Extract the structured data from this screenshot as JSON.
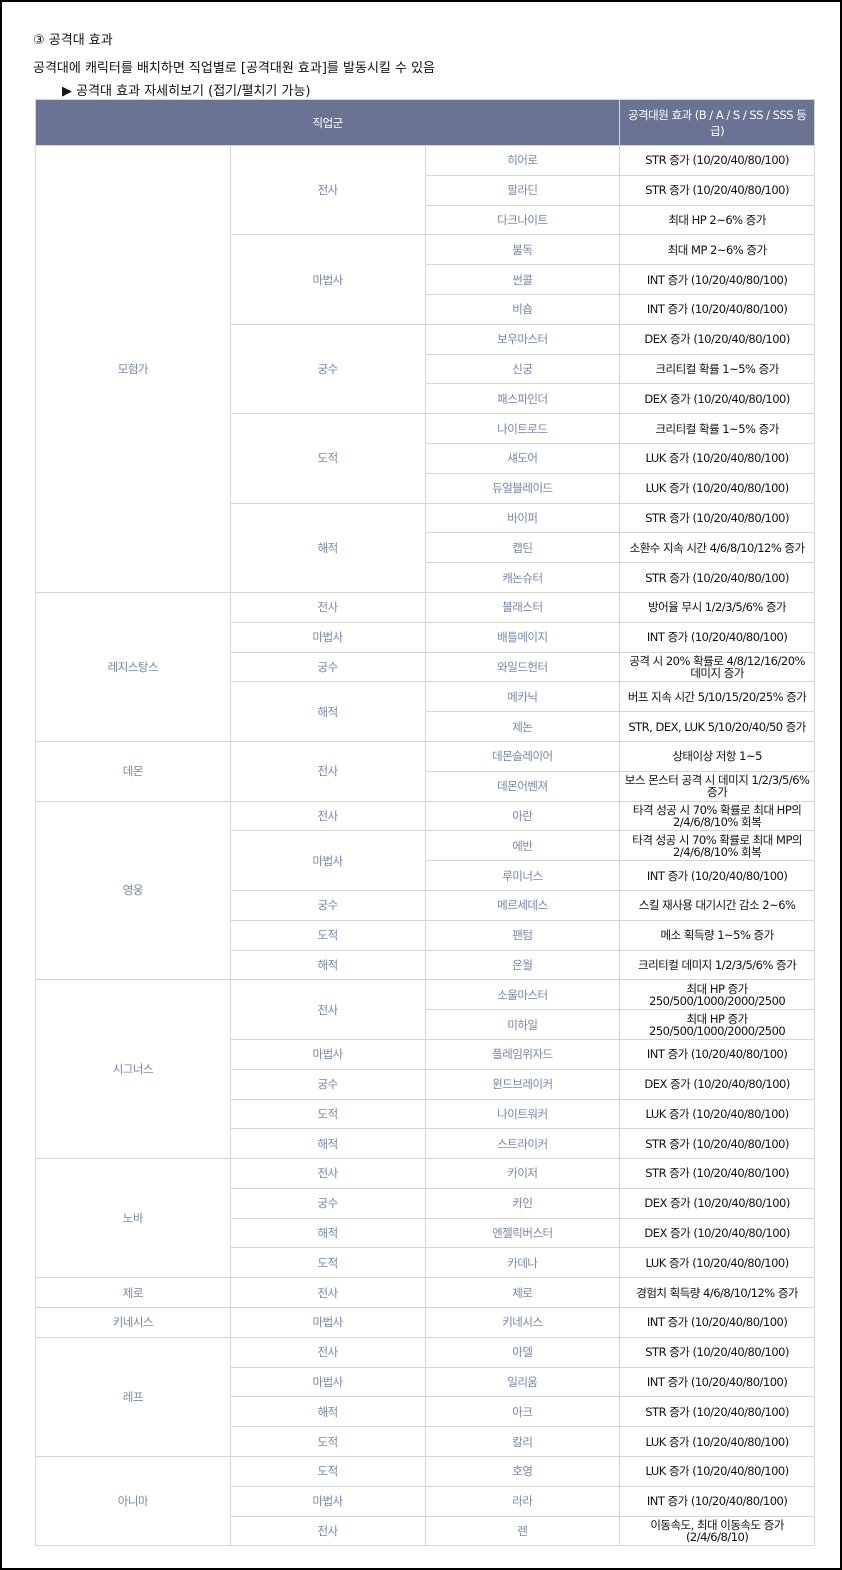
{
  "heading": "③ 공격대 효과",
  "description": "공격대에 캐릭터를 배치하면 직업별로 [공격대원 효과]를 발동시킬 수 있음",
  "toggle": "▶ 공격대 효과 자세히보기 (접기/펼치기 가능)",
  "table": {
    "header": [
      "직업군",
      "공격대원 효과 (B / A / S / SS / SSS 등급)"
    ],
    "groups": [
      {
        "name": "모험가",
        "classes": [
          {
            "name": "전사",
            "jobs": [
              {
                "name": "히어로",
                "effect": "STR 증가 (10/20/40/80/100)"
              },
              {
                "name": "팔라딘",
                "effect": "STR 증가 (10/20/40/80/100)"
              },
              {
                "name": "다크나이트",
                "effect": "최대 HP 2~6% 증가"
              }
            ]
          },
          {
            "name": "마법사",
            "jobs": [
              {
                "name": "불독",
                "effect": "최대 MP 2~6% 증가"
              },
              {
                "name": "썬콜",
                "effect": "INT 증가 (10/20/40/80/100)"
              },
              {
                "name": "비숍",
                "effect": "INT 증가 (10/20/40/80/100)"
              }
            ]
          },
          {
            "name": "궁수",
            "jobs": [
              {
                "name": "보우마스터",
                "effect": "DEX 증가 (10/20/40/80/100)"
              },
              {
                "name": "신궁",
                "effect": "크리티컬 확률 1~5% 증가"
              },
              {
                "name": "패스파인더",
                "effect": "DEX 증가 (10/20/40/80/100)"
              }
            ]
          },
          {
            "name": "도적",
            "jobs": [
              {
                "name": "나이트로드",
                "effect": "크리티컬 확률 1~5% 증가"
              },
              {
                "name": "섀도어",
                "effect": "LUK 증가 (10/20/40/80/100)"
              },
              {
                "name": "듀얼블레이드",
                "effect": "LUK 증가 (10/20/40/80/100)"
              }
            ]
          },
          {
            "name": "해적",
            "jobs": [
              {
                "name": "바이퍼",
                "effect": "STR 증가 (10/20/40/80/100)"
              },
              {
                "name": "캡틴",
                "effect": "소환수 지속 시간 4/6/8/10/12% 증가"
              },
              {
                "name": "캐논슈터",
                "effect": "STR 증가 (10/20/40/80/100)"
              }
            ]
          }
        ]
      },
      {
        "name": "레지스탕스",
        "classes": [
          {
            "name": "전사",
            "jobs": [
              {
                "name": "블래스터",
                "effect": "방어율 무시 1/2/3/5/6% 증가"
              }
            ]
          },
          {
            "name": "마법사",
            "jobs": [
              {
                "name": "배틀메이지",
                "effect": "INT 증가 (10/20/40/80/100)"
              }
            ]
          },
          {
            "name": "궁수",
            "jobs": [
              {
                "name": "와일드헌터",
                "effect": "공격 시 20% 확률로 4/8/12/16/20% 데미지 증가"
              }
            ]
          },
          {
            "name": "해적",
            "jobs": [
              {
                "name": "메카닉",
                "effect": "버프 지속 시간 5/10/15/20/25% 증가"
              },
              {
                "name": "제논",
                "effect": "STR, DEX, LUK 5/10/20/40/50 증가"
              }
            ]
          }
        ]
      },
      {
        "name": "데몬",
        "classes": [
          {
            "name": "전사",
            "jobs": [
              {
                "name": "데몬슬레이어",
                "effect": "상태이상 저항 1~5"
              },
              {
                "name": "데몬어벤져",
                "effect": "보스 몬스터 공격 시 데미지 1/2/3/5/6% 증가"
              }
            ]
          }
        ]
      },
      {
        "name": "영웅",
        "classes": [
          {
            "name": "전사",
            "jobs": [
              {
                "name": "아란",
                "effect": "타격 성공 시 70% 확률로 최대 HP의 2/4/6/8/10% 회복"
              }
            ]
          },
          {
            "name": "마법사",
            "jobs": [
              {
                "name": "에반",
                "effect": "타격 성공 시 70% 확률로 최대 MP의 2/4/6/8/10% 회복"
              },
              {
                "name": "루미너스",
                "effect": "INT 증가 (10/20/40/80/100)"
              }
            ]
          },
          {
            "name": "궁수",
            "jobs": [
              {
                "name": "메르세데스",
                "effect": "스킬 재사용 대기시간 감소 2~6%"
              }
            ]
          },
          {
            "name": "도적",
            "jobs": [
              {
                "name": "팬텀",
                "effect": "메소 획득량 1~5% 증가"
              }
            ]
          },
          {
            "name": "해적",
            "jobs": [
              {
                "name": "은월",
                "effect": "크리티컬 데미지 1/2/3/5/6% 증가"
              }
            ]
          }
        ]
      },
      {
        "name": "시그너스",
        "classes": [
          {
            "name": "전사",
            "jobs": [
              {
                "name": "소울마스터",
                "effect": "최대 HP 증가 250/500/1000/2000/2500"
              },
              {
                "name": "미하일",
                "effect": "최대 HP 증가 250/500/1000/2000/2500"
              }
            ]
          },
          {
            "name": "마법사",
            "jobs": [
              {
                "name": "플레임위자드",
                "effect": "INT 증가 (10/20/40/80/100)"
              }
            ]
          },
          {
            "name": "궁수",
            "jobs": [
              {
                "name": "윈드브레이커",
                "effect": "DEX 증가 (10/20/40/80/100)"
              }
            ]
          },
          {
            "name": "도적",
            "jobs": [
              {
                "name": "나이트워커",
                "effect": "LUK 증가 (10/20/40/80/100)"
              }
            ]
          },
          {
            "name": "해적",
            "jobs": [
              {
                "name": "스트라이커",
                "effect": "STR 증가 (10/20/40/80/100)"
              }
            ]
          }
        ]
      },
      {
        "name": "노바",
        "classes": [
          {
            "name": "전사",
            "jobs": [
              {
                "name": "카이저",
                "effect": "STR 증가 (10/20/40/80/100)"
              }
            ]
          },
          {
            "name": "궁수",
            "jobs": [
              {
                "name": "카인",
                "effect": "DEX 증가 (10/20/40/80/100)"
              }
            ]
          },
          {
            "name": "해적",
            "jobs": [
              {
                "name": "엔젤릭버스터",
                "effect": "DEX 증가 (10/20/40/80/100)"
              }
            ]
          },
          {
            "name": "도적",
            "jobs": [
              {
                "name": "카데나",
                "effect": "LUK 증가 (10/20/40/80/100)"
              }
            ]
          }
        ]
      },
      {
        "name": "제로",
        "classes": [
          {
            "name": "전사",
            "jobs": [
              {
                "name": "제로",
                "effect": "경험치 획득량 4/6/8/10/12% 증가"
              }
            ]
          }
        ]
      },
      {
        "name": "키네시스",
        "classes": [
          {
            "name": "마법사",
            "jobs": [
              {
                "name": "키네시스",
                "effect": "INT 증가 (10/20/40/80/100)"
              }
            ]
          }
        ]
      },
      {
        "name": "레프",
        "classes": [
          {
            "name": "전사",
            "jobs": [
              {
                "name": "아델",
                "effect": "STR 증가 (10/20/40/80/100)"
              }
            ]
          },
          {
            "name": "마법사",
            "jobs": [
              {
                "name": "일리움",
                "effect": "INT 증가 (10/20/40/80/100)"
              }
            ]
          },
          {
            "name": "해적",
            "jobs": [
              {
                "name": "아크",
                "effect": "STR 증가 (10/20/40/80/100)"
              }
            ]
          },
          {
            "name": "도적",
            "jobs": [
              {
                "name": "칼리",
                "effect": "LUK 증가 (10/20/40/80/100)"
              }
            ]
          }
        ]
      },
      {
        "name": "아니마",
        "classes": [
          {
            "name": "도적",
            "jobs": [
              {
                "name": "호영",
                "effect": "LUK 증가 (10/20/40/80/100)"
              }
            ]
          },
          {
            "name": "마법사",
            "jobs": [
              {
                "name": "라라",
                "effect": "INT 증가 (10/20/40/80/100)"
              }
            ]
          },
          {
            "name": "전사",
            "jobs": [
              {
                "name": "렌",
                "effect": "이동속도, 최대 이동속도 증가 (2/4/6/8/10)"
              }
            ]
          }
        ]
      }
    ]
  }
}
